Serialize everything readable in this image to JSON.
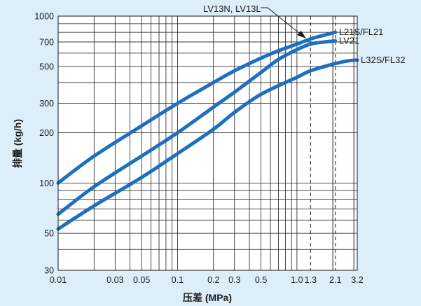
{
  "chart_data": {
    "type": "line",
    "xscale": "log",
    "yscale": "log",
    "xlabel": "压差 (MPa)",
    "ylabel": "排量 (kg/h)",
    "xlim": [
      0.01,
      3.2
    ],
    "ylim": [
      30,
      1000
    ],
    "grid": true,
    "x_ticks": [
      0.01,
      0.03,
      0.05,
      0.1,
      0.2,
      0.3,
      0.5,
      1.0,
      1.3,
      2.1,
      3.2
    ],
    "x_tick_labels": [
      "0.01",
      "0.03",
      "0.05",
      "0.1",
      "0.2",
      "0.3",
      "0.5",
      "1.0",
      "1.3",
      "2.1",
      "3.2"
    ],
    "y_ticks": [
      30,
      50,
      100,
      200,
      300,
      500,
      700,
      1000
    ],
    "y_tick_labels": [
      "30",
      "50",
      "100",
      "200",
      "300",
      "500",
      "700",
      "1000"
    ],
    "reference_lines_x": [
      1.3,
      2.1
    ],
    "callout": "LV13N, LV13L",
    "series": [
      {
        "name": "L21S/FL21",
        "color": "#1f6fc0",
        "x": [
          0.01,
          0.02,
          0.05,
          0.1,
          0.2,
          0.3,
          0.5,
          0.7,
          1.0,
          1.3,
          1.7,
          2.1
        ],
        "y": [
          100,
          145,
          220,
          300,
          400,
          470,
          560,
          620,
          680,
          730,
          770,
          800
        ]
      },
      {
        "name": "LV21",
        "color": "#1f6fc0",
        "x": [
          0.01,
          0.02,
          0.05,
          0.1,
          0.2,
          0.3,
          0.5,
          0.7,
          1.0,
          1.3,
          1.7,
          2.1
        ],
        "y": [
          65,
          95,
          145,
          200,
          285,
          350,
          460,
          550,
          630,
          680,
          700,
          710
        ]
      },
      {
        "name": "L32S/FL32",
        "color": "#1f6fc0",
        "x": [
          0.01,
          0.02,
          0.05,
          0.1,
          0.2,
          0.3,
          0.5,
          1.0,
          1.3,
          2.1,
          2.7,
          3.2
        ],
        "y": [
          53,
          73,
          108,
          150,
          210,
          265,
          340,
          430,
          470,
          520,
          540,
          545
        ]
      }
    ]
  }
}
